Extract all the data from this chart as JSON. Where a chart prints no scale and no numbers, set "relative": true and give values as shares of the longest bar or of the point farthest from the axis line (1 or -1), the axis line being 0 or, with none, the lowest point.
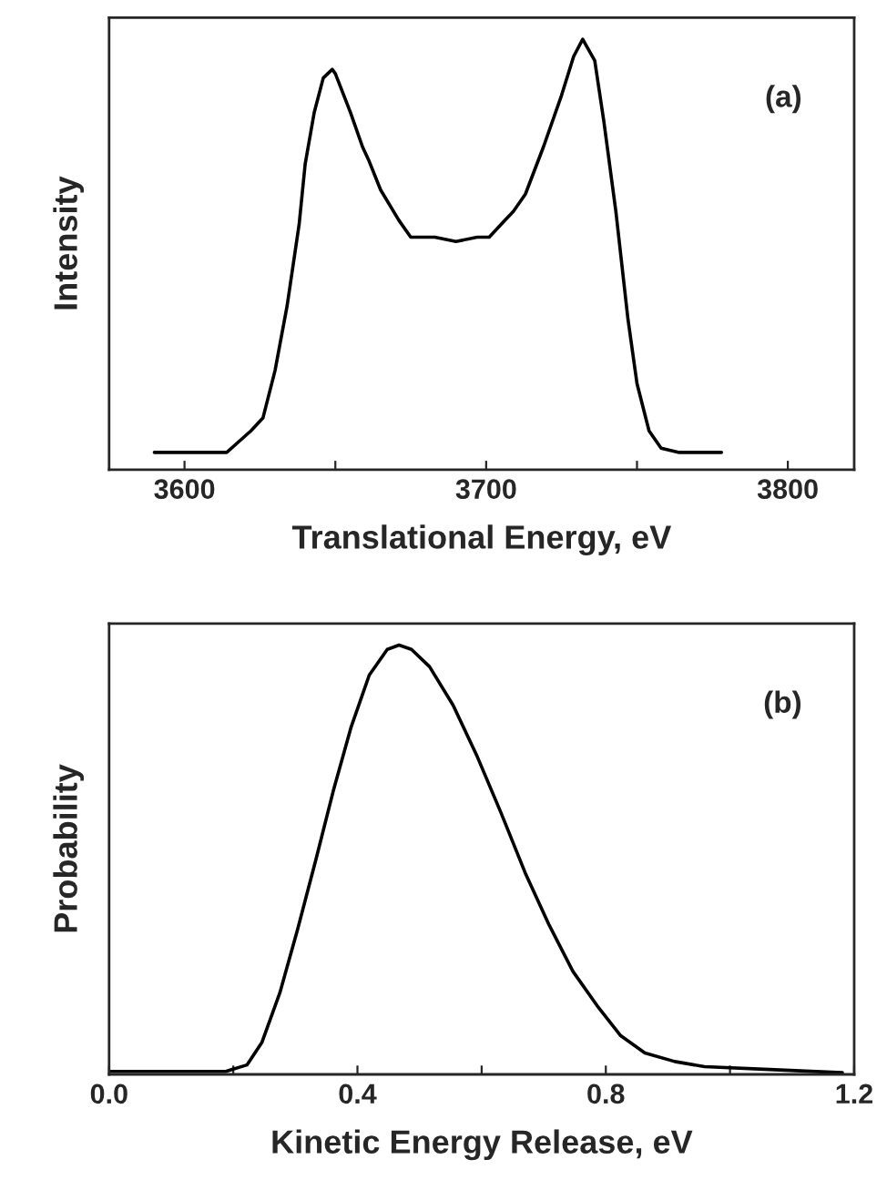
{
  "chart_data": [
    {
      "type": "line",
      "relative": true,
      "xlabel": "Translational Energy, eV",
      "ylabel": "Intensity",
      "annotations": [
        "(a)"
      ],
      "tick_labels": "x",
      "xlim": [
        3575,
        3822
      ],
      "xticks": [
        3600,
        {
          "value": 3650,
          "label": null
        },
        3700,
        {
          "value": 3750,
          "label": null
        },
        3800
      ],
      "series": [
        {
          "color": "#000000",
          "x": [
            3590,
            3614,
            3622,
            3626,
            3630,
            3634,
            3638,
            3640,
            3643,
            3646,
            3649,
            3650,
            3655,
            3659,
            3661,
            3665,
            3671,
            3675,
            3683,
            3690,
            3697,
            3701,
            3705,
            3709,
            3713,
            3719,
            3725,
            3729,
            3732,
            3736,
            3739,
            3743,
            3747,
            3750,
            3754,
            3758,
            3764,
            3778
          ],
          "values": [
            0.04,
            0.04,
            0.09,
            0.12,
            0.23,
            0.38,
            0.57,
            0.71,
            0.83,
            0.91,
            0.93,
            0.92,
            0.83,
            0.75,
            0.72,
            0.65,
            0.58,
            0.54,
            0.54,
            0.53,
            0.54,
            0.54,
            0.57,
            0.6,
            0.64,
            0.75,
            0.87,
            0.96,
            1,
            0.95,
            0.81,
            0.6,
            0.35,
            0.2,
            0.09,
            0.05,
            0.04,
            0.04
          ]
        }
      ]
    },
    {
      "type": "line",
      "relative": true,
      "xlabel": "Kinetic Energy Release, eV",
      "ylabel": "Probability",
      "annotations": [
        "(b)"
      ],
      "tick_labels": "x",
      "xlim": [
        0,
        1.2
      ],
      "xticks": [
        {
          "value": 0,
          "label": "0.0"
        },
        {
          "value": 0.2,
          "label": null
        },
        0.4,
        {
          "value": 0.6,
          "label": null
        },
        0.8,
        {
          "value": 1.0,
          "label": null
        },
        1.2
      ],
      "series": [
        {
          "color": "#000000",
          "x": [
            0,
            0.188,
            0.222,
            0.246,
            0.275,
            0.304,
            0.333,
            0.361,
            0.39,
            0.419,
            0.448,
            0.467,
            0.487,
            0.516,
            0.554,
            0.593,
            0.631,
            0.67,
            0.708,
            0.747,
            0.786,
            0.824,
            0.863,
            0.911,
            0.959,
            1.055,
            1.181
          ],
          "values": [
            0.007,
            0.007,
            0.022,
            0.074,
            0.19,
            0.34,
            0.5,
            0.66,
            0.81,
            0.93,
            0.99,
            1,
            0.99,
            0.95,
            0.86,
            0.74,
            0.61,
            0.47,
            0.35,
            0.24,
            0.16,
            0.09,
            0.05,
            0.03,
            0.018,
            0.012,
            0.004
          ]
        }
      ]
    }
  ]
}
